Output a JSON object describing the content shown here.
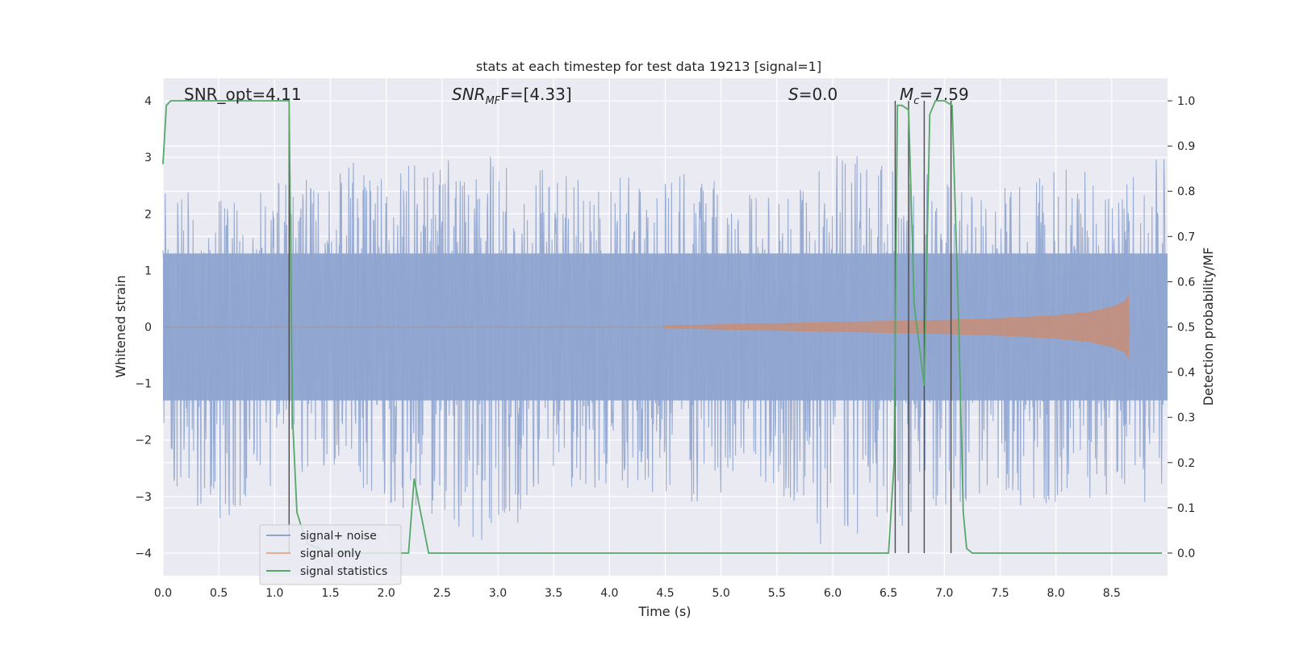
{
  "chart_data": {
    "type": "line",
    "title": "stats at each timestep for test data 19213 [signal=1]",
    "xlabel": "Time (s)",
    "ylabel_left": "Whitened strain",
    "ylabel_right": "Detection probability/MF",
    "xlim": [
      0.0,
      9.0
    ],
    "ylim_left": [
      -4.4,
      4.4
    ],
    "ylim_right": [
      -0.05,
      1.05
    ],
    "grid": true,
    "legend_placement": "lower-left",
    "x_ticks": [
      "0.0",
      "0.5",
      "1.0",
      "1.5",
      "2.0",
      "2.5",
      "3.0",
      "3.5",
      "4.0",
      "4.5",
      "5.0",
      "5.5",
      "6.0",
      "6.5",
      "7.0",
      "7.5",
      "8.0",
      "8.5"
    ],
    "x_tick_values": [
      0.0,
      0.5,
      1.0,
      1.5,
      2.0,
      2.5,
      3.0,
      3.5,
      4.0,
      4.5,
      5.0,
      5.5,
      6.0,
      6.5,
      7.0,
      7.5,
      8.0,
      8.5
    ],
    "y_left_ticks": [
      "−4",
      "−3",
      "−2",
      "−1",
      "0",
      "1",
      "2",
      "3",
      "4"
    ],
    "y_left_tick_values": [
      -4,
      -3,
      -2,
      -1,
      0,
      1,
      2,
      3,
      4
    ],
    "y_right_ticks": [
      "0.0",
      "0.1",
      "0.2",
      "0.3",
      "0.4",
      "0.5",
      "0.6",
      "0.7",
      "0.8",
      "0.9",
      "1.0"
    ],
    "y_right_tick_values": [
      0.0,
      0.1,
      0.2,
      0.3,
      0.4,
      0.5,
      0.6,
      0.7,
      0.8,
      0.9,
      1.0
    ],
    "annotations": {
      "snr_opt": "SNR_opt=4.11",
      "snr_mf_main": "SNR",
      "snr_mf_sub": "MF",
      "snr_mf_tail": "F=[4.33]",
      "s_main": "S",
      "s_tail": "=0.0",
      "mc_main": "M",
      "mc_sub": "c",
      "mc_tail": "=7.59"
    },
    "series": [
      {
        "name": "signal+ noise",
        "color": "#8fa5cf",
        "description": "whitened strain, noise dominated",
        "envelope": [
          [
            0.0,
            2.4,
            -2.7
          ],
          [
            0.5,
            2.6,
            -3.7
          ],
          [
            1.0,
            2.5,
            -2.9
          ],
          [
            1.5,
            3.0,
            -2.4
          ],
          [
            2.0,
            2.6,
            -3.1
          ],
          [
            2.5,
            3.2,
            -3.6
          ],
          [
            3.0,
            2.9,
            -3.9
          ],
          [
            3.5,
            2.7,
            -2.8
          ],
          [
            4.0,
            2.6,
            -3.0
          ],
          [
            4.5,
            2.8,
            -2.9
          ],
          [
            5.0,
            2.7,
            -3.4
          ],
          [
            5.5,
            2.4,
            -2.8
          ],
          [
            6.0,
            3.2,
            -3.9
          ],
          [
            6.5,
            2.8,
            -3.7
          ],
          [
            7.0,
            2.7,
            -3.3
          ],
          [
            7.5,
            2.6,
            -3.2
          ],
          [
            8.0,
            2.8,
            -3.2
          ],
          [
            8.5,
            2.9,
            -3.0
          ],
          [
            9.0,
            3.2,
            -3.3
          ]
        ]
      },
      {
        "name": "signal only",
        "color": "#dd8452",
        "description": "chirp waveform",
        "amplitude": [
          [
            4.5,
            0.02
          ],
          [
            5.0,
            0.04
          ],
          [
            5.5,
            0.06
          ],
          [
            6.0,
            0.08
          ],
          [
            6.5,
            0.1
          ],
          [
            7.0,
            0.12
          ],
          [
            7.5,
            0.15
          ],
          [
            8.0,
            0.2
          ],
          [
            8.3,
            0.26
          ],
          [
            8.5,
            0.35
          ],
          [
            8.62,
            0.45
          ],
          [
            8.65,
            0.55
          ],
          [
            8.66,
            0.0
          ]
        ]
      },
      {
        "name": "signal statistics",
        "color": "#55a868",
        "x": [
          0.0,
          0.03,
          0.07,
          0.15,
          0.3,
          0.6,
          0.9,
          1.1,
          1.13,
          1.16,
          1.2,
          1.25,
          1.3,
          1.5,
          2.0,
          2.2,
          2.25,
          2.3,
          2.38,
          2.5,
          3.0,
          4.0,
          5.0,
          6.0,
          6.5,
          6.55,
          6.58,
          6.62,
          6.68,
          6.73,
          6.82,
          6.87,
          6.92,
          6.97,
          7.0,
          7.07,
          7.13,
          7.17,
          7.2,
          7.25,
          7.5,
          8.0,
          8.5,
          8.8,
          8.95
        ],
        "y": [
          0.86,
          0.99,
          1.0,
          1.0,
          1.0,
          1.0,
          1.0,
          1.0,
          1.0,
          0.3,
          0.09,
          0.05,
          0.02,
          0.0,
          0.0,
          0.0,
          0.165,
          0.1,
          0.0,
          0.0,
          0.0,
          0.0,
          0.0,
          0.0,
          0.0,
          0.2,
          0.99,
          0.99,
          0.98,
          0.55,
          0.37,
          0.97,
          1.0,
          1.0,
          1.0,
          0.99,
          0.5,
          0.09,
          0.01,
          0.0,
          0.0,
          0.0,
          0.0,
          0.0,
          0.0
        ]
      }
    ],
    "vertical_markers_x": [
      1.13,
      6.56,
      6.68,
      6.82,
      7.06
    ]
  }
}
